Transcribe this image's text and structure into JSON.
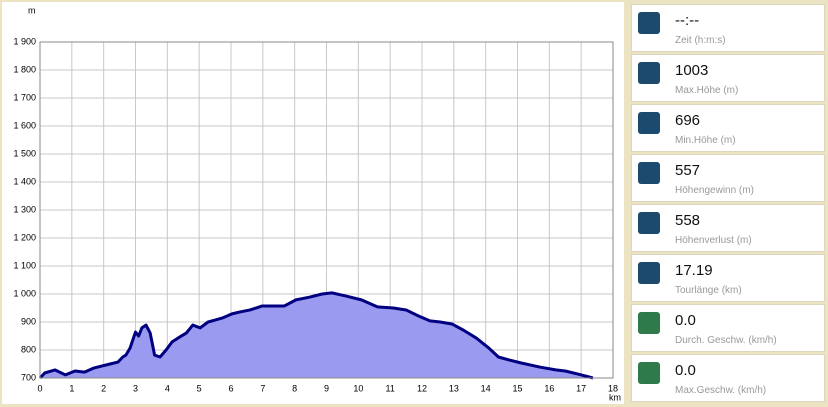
{
  "chart_data": {
    "type": "area",
    "y_unit": "m",
    "x_unit": "km",
    "xlim": [
      0,
      18
    ],
    "xticks": [
      0,
      1,
      2,
      3,
      4,
      5,
      6,
      7,
      8,
      9,
      10,
      11,
      12,
      13,
      14,
      15,
      16,
      17,
      18
    ],
    "ylim": [
      700,
      1900
    ],
    "yticks": [
      700,
      800,
      900,
      {
        "value": 1000,
        "label": "1 000"
      },
      {
        "value": 1100,
        "label": "1 100"
      },
      {
        "value": 1200,
        "label": "1 200"
      },
      {
        "value": 1300,
        "label": "1 300"
      },
      {
        "value": 1400,
        "label": "1 400"
      },
      {
        "value": 1500,
        "label": "1 500"
      },
      {
        "value": 1600,
        "label": "1 600"
      },
      {
        "value": 1700,
        "label": "1 700"
      },
      {
        "value": 1800,
        "label": "1 800"
      },
      {
        "value": 1900,
        "label": "1 900"
      }
    ],
    "grid": true,
    "series": [
      {
        "color": "#000080",
        "fill": "#9a9af0",
        "x": [
          0,
          0.15,
          0.47,
          0.8,
          1.1,
          1.4,
          1.7,
          2.2,
          2.45,
          2.6,
          2.7,
          2.83,
          3.0,
          3.1,
          3.2,
          3.33,
          3.46,
          3.6,
          3.77,
          3.96,
          4.15,
          4.34,
          4.6,
          4.8,
          5.03,
          5.28,
          5.5,
          5.72,
          6.03,
          6.28,
          6.6,
          6.97,
          7.35,
          7.67,
          8.04,
          8.48,
          8.86,
          9.17,
          9.6,
          10.1,
          10.6,
          11.1,
          11.5,
          11.9,
          12.25,
          12.57,
          12.94,
          13.3,
          13.7,
          14.1,
          14.4,
          14.75,
          15.1,
          15.7,
          16.2,
          16.5,
          16.9,
          17.37
        ],
        "values": [
          700,
          718,
          729,
          711,
          725,
          721,
          736,
          750,
          757,
          775,
          782,
          807,
          864,
          850,
          879,
          889,
          861,
          782,
          775,
          800,
          829,
          843,
          861,
          889,
          879,
          900,
          907,
          914,
          929,
          936,
          943,
          957,
          957,
          957,
          979,
          989,
          1000,
          1004,
          993,
          979,
          954,
          950,
          943,
          921,
          904,
          900,
          893,
          871,
          843,
          807,
          775,
          764,
          754,
          739,
          729,
          725,
          714,
          700
        ]
      }
    ]
  },
  "panel": {
    "rows": [
      {
        "value": "--:--",
        "label": "Zeit (h:m:s)",
        "icon": "#1c4a6e"
      },
      {
        "value": "1003",
        "label": "Max.Höhe (m)",
        "icon": "#1c4a6e"
      },
      {
        "value": "696",
        "label": "Min.Höhe (m)",
        "icon": "#1c4a6e"
      },
      {
        "value": "557",
        "label": "Höhengewinn (m)",
        "icon": "#1c4a6e"
      },
      {
        "value": "558",
        "label": "Höhenverlust (m)",
        "icon": "#1c4a6e"
      },
      {
        "value": "17.19",
        "label": "Tourlänge (km)",
        "icon": "#1c4a6e"
      },
      {
        "value": "0.0",
        "label": "Durch. Geschw. (km/h)",
        "icon": "#2e7a4a"
      },
      {
        "value": "0.0",
        "label": "Max.Geschw. (km/h)",
        "icon": "#2e7a4a"
      }
    ]
  }
}
